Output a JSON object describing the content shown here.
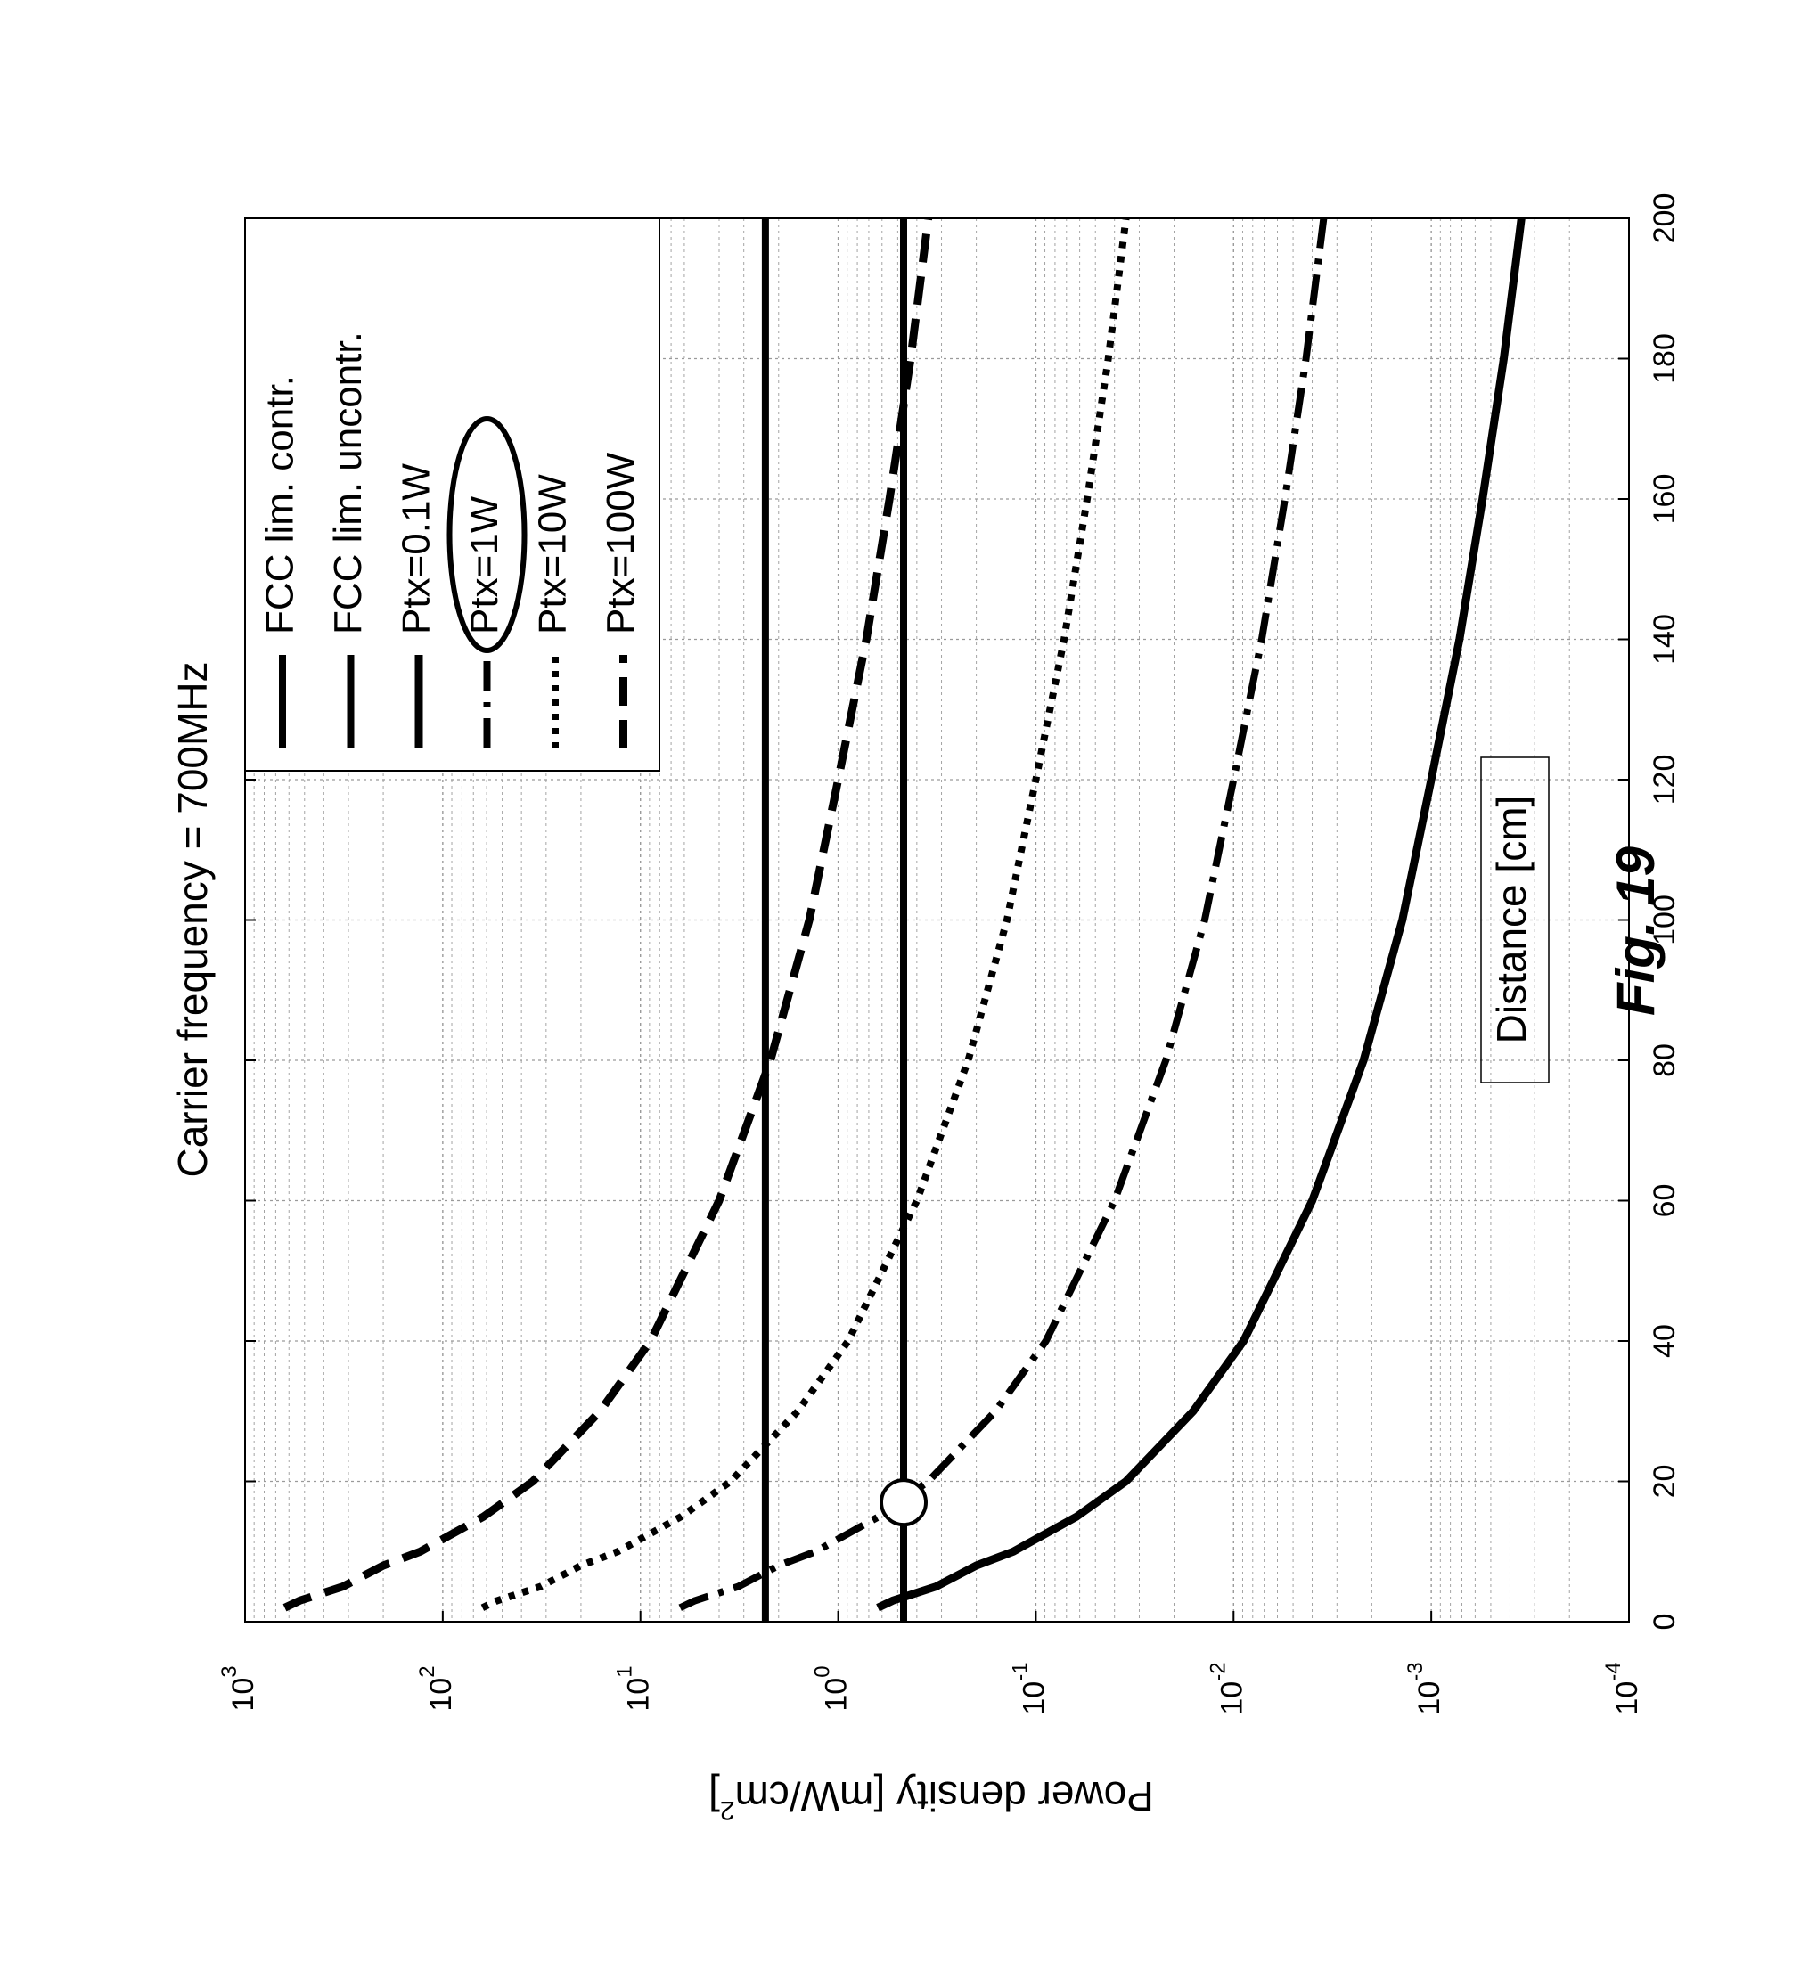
{
  "chart_data": {
    "type": "line",
    "title": "Carrier frequency = 700MHz",
    "xlabel": "Distance [cm]",
    "ylabel": "Power density [mW/cm²]",
    "xlim": [
      0,
      200
    ],
    "ylim": [
      0.0001,
      1000
    ],
    "yscale": "log",
    "grid": true,
    "orientation": "figure rotated 90° counter-clockwise",
    "x_ticks": [
      "0",
      "20",
      "40",
      "60",
      "80",
      "100",
      "120",
      "140",
      "160",
      "180",
      "200"
    ],
    "y_ticks": [
      "10^-4",
      "10^-3",
      "10^-2",
      "10^-1",
      "10^0",
      "10^1",
      "10^2",
      "10^3"
    ],
    "legend_position": "top-right",
    "series": [
      {
        "name": "FCC lim. contr.",
        "style": "solid",
        "x": [
          0,
          200
        ],
        "y": [
          2.333,
          2.333
        ]
      },
      {
        "name": "FCC lim. uncontr.",
        "style": "solid",
        "x": [
          0,
          200
        ],
        "y": [
          0.4667,
          0.4667
        ]
      },
      {
        "name": "Ptx=0.1W",
        "style": "solid-thick",
        "x": [
          2,
          3,
          5,
          8,
          10,
          15,
          20,
          30,
          40,
          60,
          80,
          100,
          120,
          140,
          160,
          180,
          200
        ],
        "y": [
          0.63,
          0.53,
          0.32,
          0.2,
          0.13,
          0.062,
          0.035,
          0.016,
          0.0089,
          0.004,
          0.0022,
          0.0014,
          0.001,
          0.00072,
          0.00055,
          0.00043,
          0.00035
        ]
      },
      {
        "name": "Ptx=1W",
        "style": "dash-dot",
        "x": [
          2,
          3,
          5,
          8,
          10,
          15,
          20,
          30,
          40,
          60,
          80,
          100,
          120,
          140,
          160,
          180,
          200
        ],
        "y": [
          6.3,
          5.3,
          3.2,
          2.0,
          1.3,
          0.62,
          0.35,
          0.16,
          0.089,
          0.04,
          0.022,
          0.014,
          0.01,
          0.0072,
          0.0055,
          0.0043,
          0.0035
        ]
      },
      {
        "name": "Ptx=10W",
        "style": "dotted",
        "x": [
          2,
          3,
          5,
          8,
          10,
          15,
          20,
          30,
          40,
          60,
          80,
          100,
          120,
          140,
          160,
          180,
          200
        ],
        "y": [
          63,
          53,
          32,
          20,
          13,
          6.2,
          3.5,
          1.6,
          0.89,
          0.4,
          0.22,
          0.14,
          0.1,
          0.072,
          0.055,
          0.043,
          0.035
        ]
      },
      {
        "name": "Ptx=100W",
        "style": "dashed",
        "x": [
          2,
          3,
          5,
          8,
          10,
          15,
          20,
          30,
          40,
          60,
          80,
          100,
          120,
          140,
          160,
          180,
          200
        ],
        "y": [
          630,
          530,
          320,
          200,
          130,
          62,
          35,
          16,
          8.9,
          4.0,
          2.2,
          1.4,
          1.0,
          0.72,
          0.55,
          0.43,
          0.35
        ]
      }
    ],
    "annotations": [
      {
        "type": "circle-marker",
        "x": 17,
        "y": 0.4667,
        "description": "intersection of Ptx=1W with FCC lim. uncontr."
      },
      {
        "type": "ellipse",
        "target": "Ptx=1W legend entry"
      }
    ],
    "caption": "Fig. 19"
  }
}
